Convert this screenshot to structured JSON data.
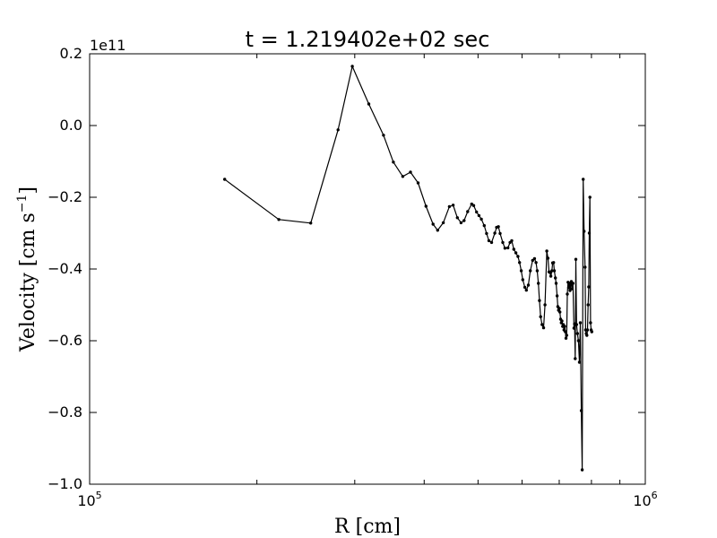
{
  "chart_data": {
    "type": "line",
    "title": "t = 1.219402e+02 sec",
    "xlabel": "R [cm]",
    "ylabel": "Velocity [cm s",
    "ylabel_sup": "−1",
    "ylabel_close": "]",
    "x_scale": "log",
    "xlim": [
      100000,
      1000000
    ],
    "ylim": [
      -1.0,
      0.2
    ],
    "y_offset_label": "1e11",
    "y_ticks": [
      {
        "value": 0.2,
        "label": "0.2"
      },
      {
        "value": 0.0,
        "label": "0.0"
      },
      {
        "value": -0.2,
        "label": "−0.2"
      },
      {
        "value": -0.4,
        "label": "−0.4"
      },
      {
        "value": -0.6,
        "label": "−0.6"
      },
      {
        "value": -0.8,
        "label": "−0.8"
      },
      {
        "value": -1.0,
        "label": "−1.0"
      }
    ],
    "x_ticks": [
      {
        "value": 100000,
        "base": "10",
        "exp": "5"
      },
      {
        "value": 1000000,
        "base": "10",
        "exp": "6"
      }
    ],
    "grid": false,
    "series": [
      {
        "color": "#000000",
        "marker": "dot",
        "x": [
          175000,
          219000,
          250000,
          280000,
          297000,
          318000,
          338000,
          352000,
          366000,
          378000,
          390000,
          403000,
          415000,
          423000,
          433000,
          444000,
          451000,
          459000,
          466000,
          472000,
          479000,
          487000,
          491000,
          497000,
          502000,
          507000,
          513000,
          518000,
          523000,
          529000,
          536000,
          540000,
          544000,
          548000,
          554000,
          559000,
          566000,
          571000,
          575000,
          580000,
          585000,
          590000,
          594000,
          598000,
          602000,
          607000,
          611000,
          616000,
          621000,
          627000,
          632000,
          636000,
          639000,
          642000,
          645000,
          648000,
          652000,
          656000,
          660000,
          665000,
          668000,
          671000,
          674000,
          676000,
          679000,
          681000,
          684000,
          686000,
          689000,
          691000,
          694000,
          696000,
          698000,
          700000,
          702000,
          704000,
          706000,
          708000,
          710000,
          712000,
          714000,
          716000,
          718000,
          720000,
          722000,
          724000,
          726000,
          728000,
          730000,
          732000,
          734000,
          736000,
          738000,
          741000,
          744000,
          746000,
          748000,
          750000,
          752000,
          755000,
          758000,
          761000,
          764000,
          767000,
          770000,
          773000,
          776000,
          779000,
          781000,
          783000,
          785000,
          787000,
          789000,
          791000,
          793000,
          795000,
          797000,
          799000,
          801000
        ],
        "y": [
          -0.15,
          -0.262,
          -0.272,
          -0.012,
          0.165,
          0.06,
          -0.027,
          -0.102,
          -0.142,
          -0.13,
          -0.16,
          -0.225,
          -0.275,
          -0.292,
          -0.271,
          -0.226,
          -0.222,
          -0.257,
          -0.271,
          -0.265,
          -0.24,
          -0.219,
          -0.223,
          -0.241,
          -0.251,
          -0.261,
          -0.279,
          -0.301,
          -0.321,
          -0.326,
          -0.3,
          -0.284,
          -0.282,
          -0.301,
          -0.326,
          -0.342,
          -0.341,
          -0.326,
          -0.321,
          -0.345,
          -0.355,
          -0.365,
          -0.382,
          -0.405,
          -0.43,
          -0.451,
          -0.459,
          -0.445,
          -0.405,
          -0.376,
          -0.371,
          -0.382,
          -0.405,
          -0.44,
          -0.488,
          -0.533,
          -0.555,
          -0.564,
          -0.5,
          -0.35,
          -0.37,
          -0.408,
          -0.41,
          -0.42,
          -0.405,
          -0.383,
          -0.382,
          -0.405,
          -0.425,
          -0.44,
          -0.475,
          -0.505,
          -0.515,
          -0.51,
          -0.52,
          -0.54,
          -0.55,
          -0.545,
          -0.56,
          -0.555,
          -0.57,
          -0.56,
          -0.575,
          -0.593,
          -0.585,
          -0.47,
          -0.437,
          -0.452,
          -0.44,
          -0.46,
          -0.445,
          -0.435,
          -0.455,
          -0.44,
          -0.565,
          -0.553,
          -0.65,
          -0.373,
          -0.555,
          -0.58,
          -0.6,
          -0.66,
          -0.55,
          -0.795,
          -0.96,
          -0.15,
          -0.295,
          -0.395,
          -0.57,
          -0.58,
          -0.585,
          -0.57,
          -0.5,
          -0.45,
          -0.3,
          -0.2,
          -0.55,
          -0.57,
          -0.575
        ]
      }
    ]
  }
}
